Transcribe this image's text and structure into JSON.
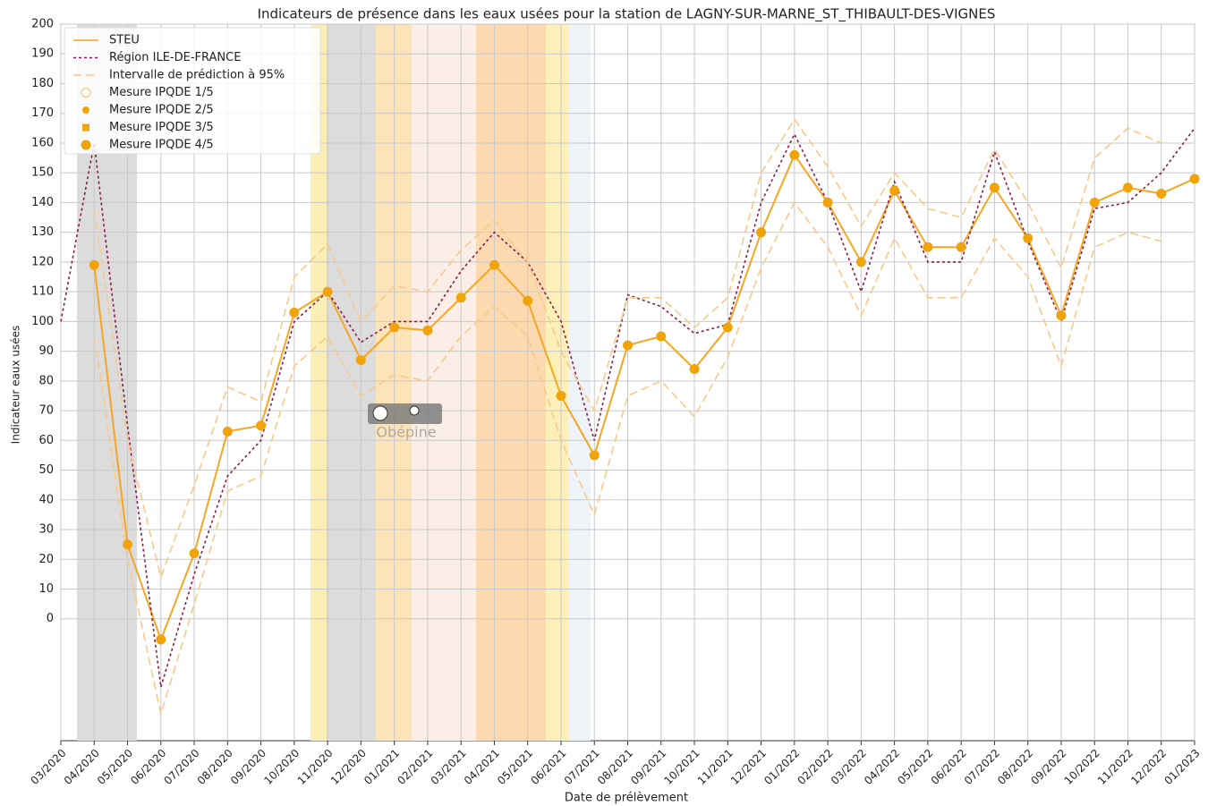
{
  "chart_data": {
    "type": "line",
    "title": "Indicateurs de présence dans les eaux usées pour la station de LAGNY-SUR-MARNE_ST_THIBAULT-DES-VIGNES",
    "x_label": "Date de prélèvement",
    "y_label": "Indicateur eaux usées",
    "watermark": "Obépine",
    "grid": true,
    "legend": "upper left",
    "xlim": [
      "2020-03",
      "2023-01"
    ],
    "ylim": [
      -41,
      200
    ],
    "yticks": [
      0,
      10,
      20,
      30,
      40,
      50,
      60,
      70,
      80,
      90,
      100,
      110,
      120,
      130,
      140,
      150,
      160,
      170,
      180,
      190,
      200
    ],
    "xticks": [
      {
        "value": "2020-03",
        "label": "03/2020"
      },
      {
        "value": "2020-04",
        "label": "04/2020"
      },
      {
        "value": "2020-05",
        "label": "05/2020"
      },
      {
        "value": "2020-06",
        "label": "06/2020"
      },
      {
        "value": "2020-07",
        "label": "07/2020"
      },
      {
        "value": "2020-08",
        "label": "08/2020"
      },
      {
        "value": "2020-09",
        "label": "09/2020"
      },
      {
        "value": "2020-10",
        "label": "10/2020"
      },
      {
        "value": "2020-11",
        "label": "11/2020"
      },
      {
        "value": "2020-12",
        "label": "12/2020"
      },
      {
        "value": "2021-01",
        "label": "01/2021"
      },
      {
        "value": "2021-02",
        "label": "02/2021"
      },
      {
        "value": "2021-03",
        "label": "03/2021"
      },
      {
        "value": "2021-04",
        "label": "04/2021"
      },
      {
        "value": "2021-05",
        "label": "05/2021"
      },
      {
        "value": "2021-06",
        "label": "06/2021"
      },
      {
        "value": "2021-07",
        "label": "07/2021"
      },
      {
        "value": "2021-08",
        "label": "08/2021"
      },
      {
        "value": "2021-09",
        "label": "09/2021"
      },
      {
        "value": "2021-10",
        "label": "10/2021"
      },
      {
        "value": "2021-11",
        "label": "11/2021"
      },
      {
        "value": "2021-12",
        "label": "12/2021"
      },
      {
        "value": "2022-01",
        "label": "01/2022"
      },
      {
        "value": "2022-02",
        "label": "02/2022"
      },
      {
        "value": "2022-03",
        "label": "03/2022"
      },
      {
        "value": "2022-04",
        "label": "04/2022"
      },
      {
        "value": "2022-05",
        "label": "05/2022"
      },
      {
        "value": "2022-06",
        "label": "06/2022"
      },
      {
        "value": "2022-07",
        "label": "07/2022"
      },
      {
        "value": "2022-08",
        "label": "08/2022"
      },
      {
        "value": "2022-09",
        "label": "09/2022"
      },
      {
        "value": "2022-10",
        "label": "10/2022"
      },
      {
        "value": "2022-11",
        "label": "11/2022"
      },
      {
        "value": "2022-12",
        "label": "12/2022"
      },
      {
        "value": "2023-01",
        "label": "01/2023"
      }
    ],
    "x": [
      "2020-03",
      "2020-04",
      "2020-05",
      "2020-06",
      "2020-07",
      "2020-08",
      "2020-09",
      "2020-10",
      "2020-11",
      "2020-12",
      "2021-01",
      "2021-02",
      "2021-03",
      "2021-04",
      "2021-05",
      "2021-06",
      "2021-07",
      "2021-08",
      "2021-09",
      "2021-10",
      "2021-11",
      "2021-12",
      "2022-01",
      "2022-02",
      "2022-03",
      "2022-04",
      "2022-05",
      "2022-06",
      "2022-07",
      "2022-08",
      "2022-09",
      "2022-10",
      "2022-11",
      "2022-12",
      "2023-01"
    ],
    "series": [
      {
        "name": "STEU",
        "color": "#f5a623",
        "line_style": "solid",
        "marker": "none",
        "values": [
          null,
          119,
          25,
          -7,
          22,
          63,
          65,
          103,
          110,
          87,
          98,
          97,
          108,
          119,
          107,
          75,
          55,
          92,
          95,
          84,
          98,
          130,
          156,
          140,
          120,
          144,
          125,
          125,
          145,
          128,
          102,
          140,
          145,
          143,
          148
        ]
      },
      {
        "name": "Région ILE-DE-FRANCE",
        "color": "#8b1a4a",
        "line_style": "dotted",
        "marker": "none",
        "values": [
          100,
          160,
          65,
          -23,
          15,
          48,
          60,
          100,
          110,
          93,
          100,
          100,
          117,
          130,
          120,
          100,
          60,
          109,
          105,
          96,
          99,
          140,
          163,
          140,
          110,
          147,
          120,
          120,
          157,
          127,
          100,
          138,
          140,
          150,
          165
        ]
      },
      {
        "name": "Intervalle de prédiction à 95%",
        "color": "#f7c98b",
        "line_style": "dashed",
        "marker": "none",
        "values": [
          null,
          138,
          60,
          14,
          45,
          78,
          73,
          115,
          126,
          100,
          112,
          110,
          124,
          134,
          120,
          90,
          70,
          108,
          108,
          98,
          108,
          150,
          168,
          152,
          132,
          150,
          138,
          135,
          158,
          140,
          118,
          155,
          165,
          160,
          null
        ]
      },
      {
        "name": "Intervalle de prédiction à 95%",
        "color": "#f7c98b",
        "line_style": "dashed",
        "marker": "none",
        "values": [
          null,
          95,
          20,
          -32,
          5,
          43,
          48,
          85,
          95,
          75,
          82,
          80,
          95,
          105,
          95,
          60,
          35,
          75,
          80,
          68,
          88,
          118,
          140,
          125,
          102,
          128,
          108,
          108,
          128,
          115,
          85,
          125,
          130,
          127,
          null
        ]
      },
      {
        "name": "Mesure IPQDE 1/5",
        "color": "#f5c26b",
        "line_style": "none",
        "marker": "open-circle",
        "values": [
          null,
          null,
          null,
          null,
          null,
          null,
          null,
          null,
          null,
          null,
          null,
          null,
          null,
          null,
          null,
          null,
          null,
          null,
          null,
          null,
          null,
          null,
          null,
          null,
          null,
          null,
          null,
          null,
          null,
          null,
          null,
          null,
          null,
          null,
          null
        ]
      },
      {
        "name": "Mesure IPQDE 2/5",
        "color": "#f0a30a",
        "line_style": "none",
        "marker": "dot",
        "values": [
          null,
          null,
          null,
          null,
          null,
          null,
          null,
          null,
          null,
          null,
          null,
          null,
          null,
          null,
          null,
          null,
          null,
          null,
          null,
          null,
          null,
          null,
          null,
          null,
          null,
          null,
          null,
          null,
          null,
          null,
          null,
          null,
          null,
          null,
          null
        ]
      },
      {
        "name": "Mesure IPQDE 3/5",
        "color": "#f0a30a",
        "line_style": "none",
        "marker": "square",
        "values": [
          null,
          null,
          null,
          null,
          null,
          null,
          null,
          null,
          null,
          null,
          null,
          null,
          null,
          null,
          null,
          null,
          null,
          null,
          null,
          null,
          null,
          null,
          null,
          null,
          null,
          null,
          null,
          null,
          null,
          null,
          null,
          null,
          null,
          null,
          null
        ]
      },
      {
        "name": "Mesure IPQDE 4/5",
        "color": "#f0a30a",
        "line_style": "none",
        "marker": "circle",
        "values": [
          null,
          119,
          25,
          -7,
          22,
          63,
          65,
          103,
          110,
          87,
          98,
          97,
          108,
          119,
          107,
          75,
          55,
          92,
          95,
          84,
          98,
          130,
          156,
          140,
          120,
          144,
          125,
          125,
          145,
          128,
          102,
          140,
          145,
          143,
          148
        ]
      }
    ]
  }
}
